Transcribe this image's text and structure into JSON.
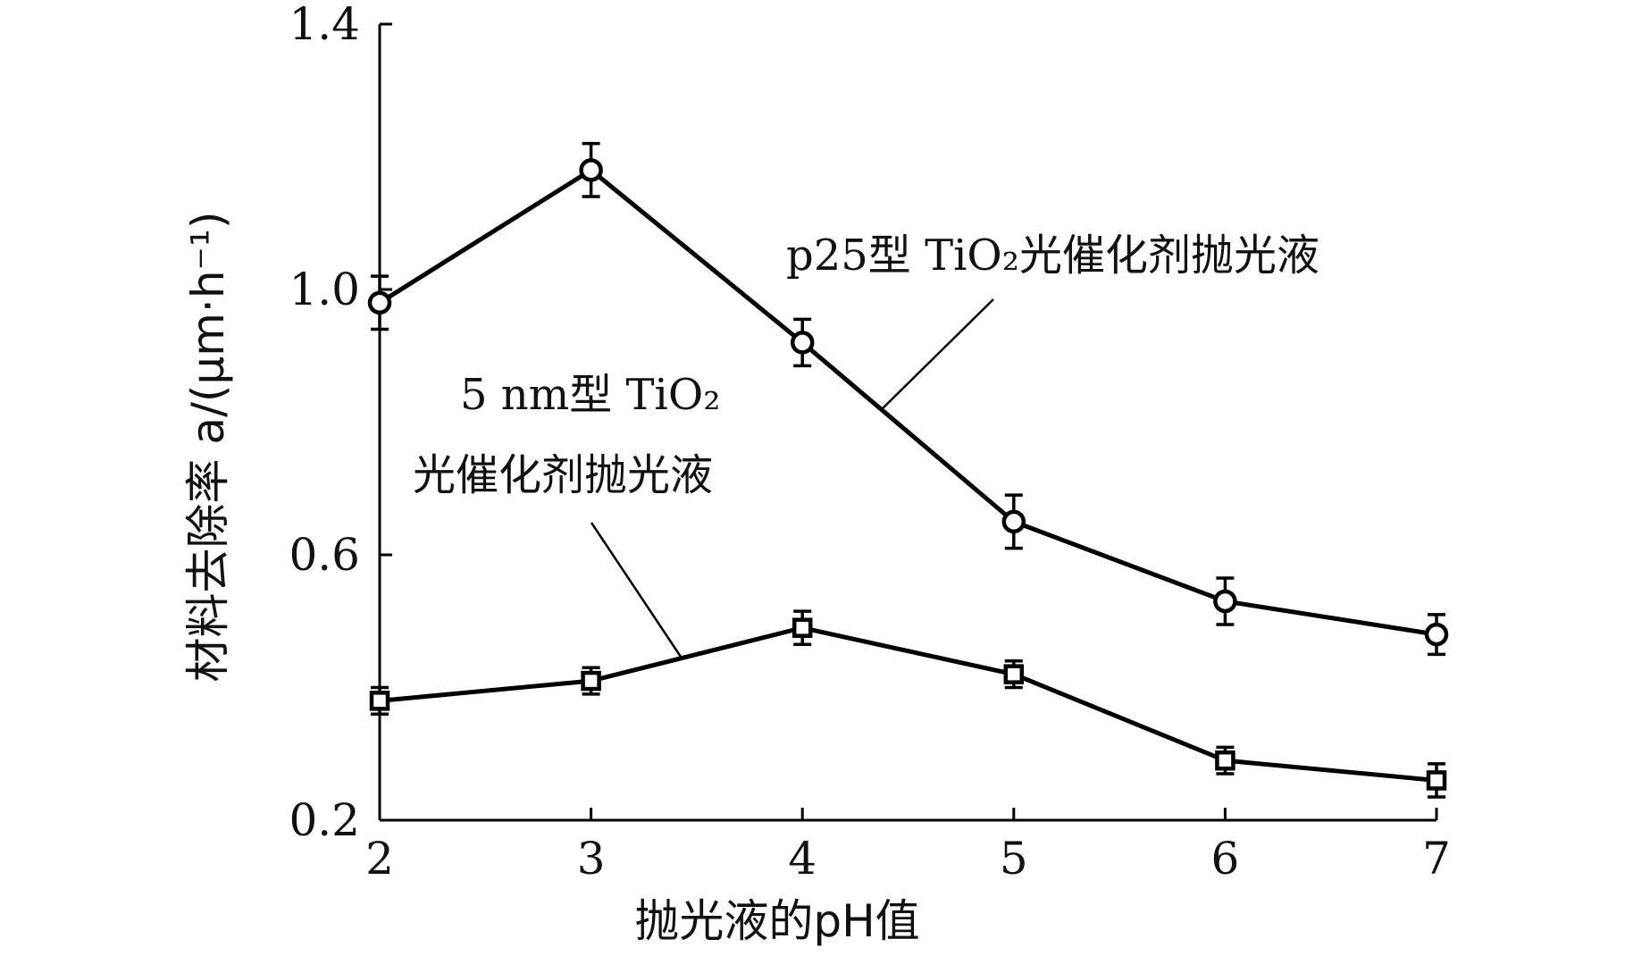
{
  "chart_data": {
    "type": "line",
    "x": [
      2,
      3,
      4,
      5,
      6,
      7
    ],
    "xlim": [
      2,
      7
    ],
    "ylim": [
      0.2,
      1.4
    ],
    "xticks": [
      "2",
      "3",
      "4",
      "5",
      "6",
      "7"
    ],
    "yticks": [
      "0.2",
      "0.6",
      "1.0",
      "1.4"
    ],
    "xlabel": "抛光液的pH值",
    "ylabel": "材料去除率 a/(μm·h⁻¹)",
    "grid": false,
    "series": [
      {
        "name": "p25型 TiO₂光催化剂抛光液",
        "marker": "circle",
        "values": [
          0.98,
          1.18,
          0.92,
          0.65,
          0.53,
          0.48
        ],
        "errors": [
          0.04,
          0.04,
          0.035,
          0.04,
          0.035,
          0.03
        ]
      },
      {
        "name": "5 nm型 TiO₂光催化剂抛光液",
        "marker": "square",
        "values": [
          0.38,
          0.41,
          0.49,
          0.42,
          0.29,
          0.26
        ],
        "errors": [
          0.02,
          0.02,
          0.025,
          0.02,
          0.02,
          0.025
        ]
      }
    ],
    "annotations": {
      "p25_label": "p25型 TiO₂光催化剂抛光液",
      "nm5_label_line1": "5 nm型 TiO₂",
      "nm5_label_line2": "光催化剂抛光液"
    },
    "colors": {
      "line": "#000000",
      "marker_fill": "#ffffff"
    }
  }
}
